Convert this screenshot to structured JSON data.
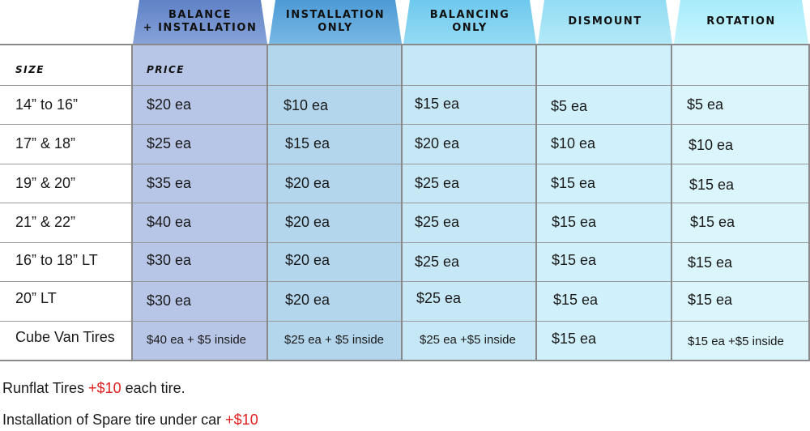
{
  "headers": {
    "balance_install": [
      "BALANCE",
      "+ INSTALLATION"
    ],
    "install_only": [
      "INSTALLATION",
      "ONLY"
    ],
    "balancing_only": [
      "BALANCING",
      "ONLY"
    ],
    "dismount": [
      "DISMOUNT"
    ],
    "rotation": [
      "ROTATION"
    ]
  },
  "label_row": {
    "size": "SIZE",
    "price": "PRICE"
  },
  "rows": [
    {
      "size": "14” to 16”",
      "prices": [
        "$20 ea",
        "$10 ea",
        "$15 ea",
        "$5 ea",
        "$5 ea"
      ]
    },
    {
      "size": "17” & 18”",
      "prices": [
        "$25 ea",
        "$15 ea",
        "$20 ea",
        "$10 ea",
        "$10 ea"
      ]
    },
    {
      "size": "19” & 20”",
      "prices": [
        "$35 ea",
        "$20 ea",
        "$25 ea",
        "$15 ea",
        "$15 ea"
      ]
    },
    {
      "size": "21” & 22”",
      "prices": [
        "$40 ea",
        "$20 ea",
        "$25 ea",
        "$15 ea",
        "$15 ea"
      ]
    },
    {
      "size": "16” to 18” LT",
      "prices": [
        "$30 ea",
        "$20 ea",
        "$25 ea",
        "$15 ea",
        "$15 ea"
      ]
    },
    {
      "size": "20” LT",
      "prices": [
        "$30 ea",
        "$20 ea",
        "$25 ea",
        "$15 ea",
        "$15 ea"
      ]
    },
    {
      "size": "Cube Van Tires",
      "prices": [
        "$40 ea + $5 inside",
        "$25 ea + $5 inside",
        "$25 ea +$5 inside",
        "$15 ea",
        "$15 ea +$5 inside"
      ]
    }
  ],
  "notes": {
    "runflat_prefix": "Runflat Tires ",
    "runflat_price": "+$10",
    "runflat_suffix": " each tire.",
    "spare_prefix": "Installation of Spare tire under car ",
    "spare_price": "+$10"
  },
  "colors": {
    "balance_install_header": "#6f8fcc",
    "install_only_header": "#5fa6d9",
    "balancing_only_header": "#7fcff0",
    "dismount_header": "#9fe0f4",
    "rotation_header": "#b5f0fc",
    "accent_red": "#e02020"
  }
}
